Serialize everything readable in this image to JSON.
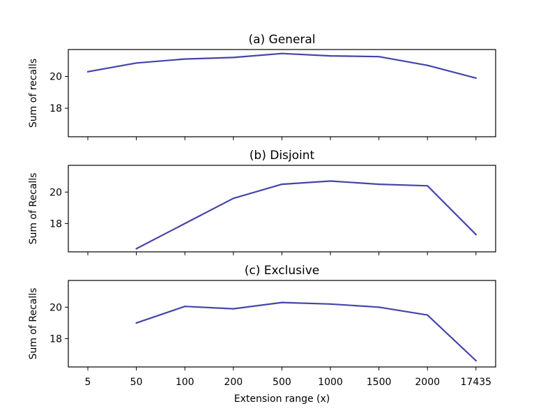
{
  "chart_data": [
    {
      "type": "line",
      "title": "(a) General",
      "ylabel": "Sum of recalls",
      "xlabel": "",
      "categories": [
        "5",
        "50",
        "100",
        "200",
        "500",
        "1000",
        "1500",
        "2000",
        "17435"
      ],
      "values": [
        20.3,
        20.85,
        21.1,
        21.2,
        21.45,
        21.3,
        21.25,
        20.7,
        19.9
      ],
      "ylim": [
        16.2,
        21.7
      ],
      "yticks": [
        "18",
        "20"
      ],
      "line_color": "#4444aa",
      "grid": false
    },
    {
      "type": "line",
      "title": "(b) Disjoint",
      "ylabel": "Sum of Recalls",
      "xlabel": "",
      "categories": [
        "5",
        "50",
        "100",
        "200",
        "500",
        "1000",
        "1500",
        "2000",
        "17435"
      ],
      "values": [
        null,
        16.4,
        18.0,
        19.6,
        20.5,
        20.7,
        20.5,
        20.4,
        17.3
      ],
      "ylim": [
        16.2,
        21.7
      ],
      "yticks": [
        "18",
        "20"
      ],
      "line_color": "#4444aa",
      "grid": false
    },
    {
      "type": "line",
      "title": "(c) Exclusive",
      "ylabel": "Sum of Recalls",
      "xlabel": "Extension range (x)",
      "categories": [
        "5",
        "50",
        "100",
        "200",
        "500",
        "1000",
        "1500",
        "2000",
        "17435"
      ],
      "values": [
        null,
        19.0,
        20.05,
        19.9,
        20.3,
        20.2,
        20.0,
        19.5,
        16.6
      ],
      "ylim": [
        16.2,
        21.7
      ],
      "yticks": [
        "18",
        "20"
      ],
      "line_color": "#4444aa",
      "grid": false
    }
  ]
}
